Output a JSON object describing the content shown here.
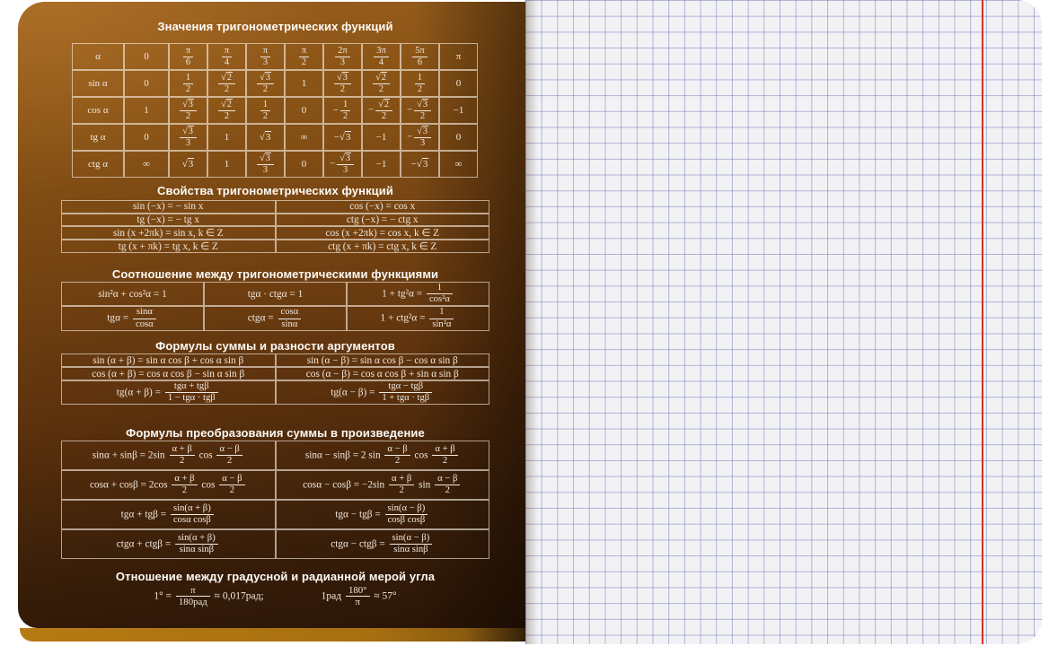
{
  "cover": {
    "sections": [
      {
        "title": "Значения тригонометрических функций",
        "header": [
          "α",
          "0",
          "[π|6]",
          "[π|4]",
          "[π|3]",
          "[π|2]",
          "[2π|3]",
          "[3π|4]",
          "[5π|6]",
          "π"
        ],
        "rows": [
          {
            "label": "sin α",
            "cells": [
              "0",
              "[1|2]",
              "[√{2}|2]",
              "[√{3}|2]",
              "1",
              "[√{3}|2]",
              "[√{2}|2]",
              "[1|2]",
              "0"
            ]
          },
          {
            "label": "cos α",
            "cells": [
              "1",
              "[√{3}|2]",
              "[√{2}|2]",
              "[1|2]",
              "0",
              "−[1|2]",
              "−[√{2}|2]",
              "−[√{3}|2]",
              "−1"
            ]
          },
          {
            "label": "tg α",
            "cells": [
              "0",
              "[√{3}|3]",
              "1",
              "√{3}",
              "∞",
              "−√{3}",
              "−1",
              "−[√{3}|3]",
              "0"
            ]
          },
          {
            "label": "ctg α",
            "cells": [
              "∞",
              "√{3}",
              "1",
              "[√{3}|3]",
              "0",
              "−[√{3}|3]",
              "−1",
              "−√{3}",
              "∞"
            ]
          }
        ]
      },
      {
        "title": "Свойства тригонометрических функций",
        "rows": [
          [
            "sin (−x) = − sin x",
            "cos (−x) = cos x"
          ],
          [
            "tg (−x) = − tg x",
            "ctg (−x) = − ctg x"
          ],
          [
            "sin (x +2πk) = sin x, k ∈ Z",
            "cos (x +2πk) = cos x, k ∈ Z"
          ],
          [
            "tg (x + πk) = tg x, k ∈ Z",
            "ctg (x + πk) = ctg x, k ∈ Z"
          ]
        ]
      },
      {
        "title": "Соотношение между тригонометрическими функциями",
        "rows": [
          [
            "sin²α + cos²α = 1",
            "tgα · ctgα = 1",
            "1 + tg²α = [1|cos²α]"
          ],
          [
            "tgα = [sinα|cosα]",
            "ctgα = [cosα|sinα]",
            "1 + ctg²α = [1|sin²α]"
          ]
        ]
      },
      {
        "title": "Формулы суммы и разности аргументов",
        "rows": [
          [
            "sin (α + β) = sin α cos β + cos α sin β",
            "sin (α − β) =  sin α cos β − cos α sin β"
          ],
          [
            "cos (α + β) = cos α cos β − sin α sin β",
            "cos (α − β) = cos α cos β + sin α sin β"
          ],
          [
            "tg(α + β) = [tgα + tgβ|1 − tgα · tgβ]",
            "tg(α − β) = [tgα − tgβ|1 + tgα · tgβ]"
          ]
        ]
      },
      {
        "title": "Формулы преобразования суммы в произведение",
        "rows": [
          [
            "sinα + sinβ = 2sin [α + β|2] cos [α − β|2]",
            "sinα − sinβ = 2 sin [α − β|2] cos [α + β|2]"
          ],
          [
            "cosα + cosβ = 2cos [α + β|2] cos [α − β|2]",
            "cosα − cosβ = −2sin [α + β|2] sin [α − β|2]"
          ],
          [
            "tgα + tgβ = [sin(α + β)|cosα cosβ]",
            "tgα − tgβ = [sin(α − β)|cosβ cosβ]"
          ],
          [
            "ctgα + ctgβ = [sin(α + β)|sinα sinβ]",
            "ctgα − ctgβ = [sin(α − β)|sinα sinβ]"
          ]
        ]
      },
      {
        "title": "Отношение между градусной и радианной мерой угла",
        "formulas": [
          "1° = [π|180рад] ≈ 0,017рад;",
          "1рад [180°|π] ≈ 57°"
        ]
      }
    ]
  },
  "paper": {
    "type": "squared",
    "paper_color": "#f2f2f5",
    "grid_color": "#7078b8",
    "margin_line_color": "#cc3327"
  },
  "colors": {
    "cover_top": "#9a601f",
    "cover_bottom": "#281406",
    "cover_text": "#f2e9df",
    "back_cover_edge": "#b67b12"
  }
}
